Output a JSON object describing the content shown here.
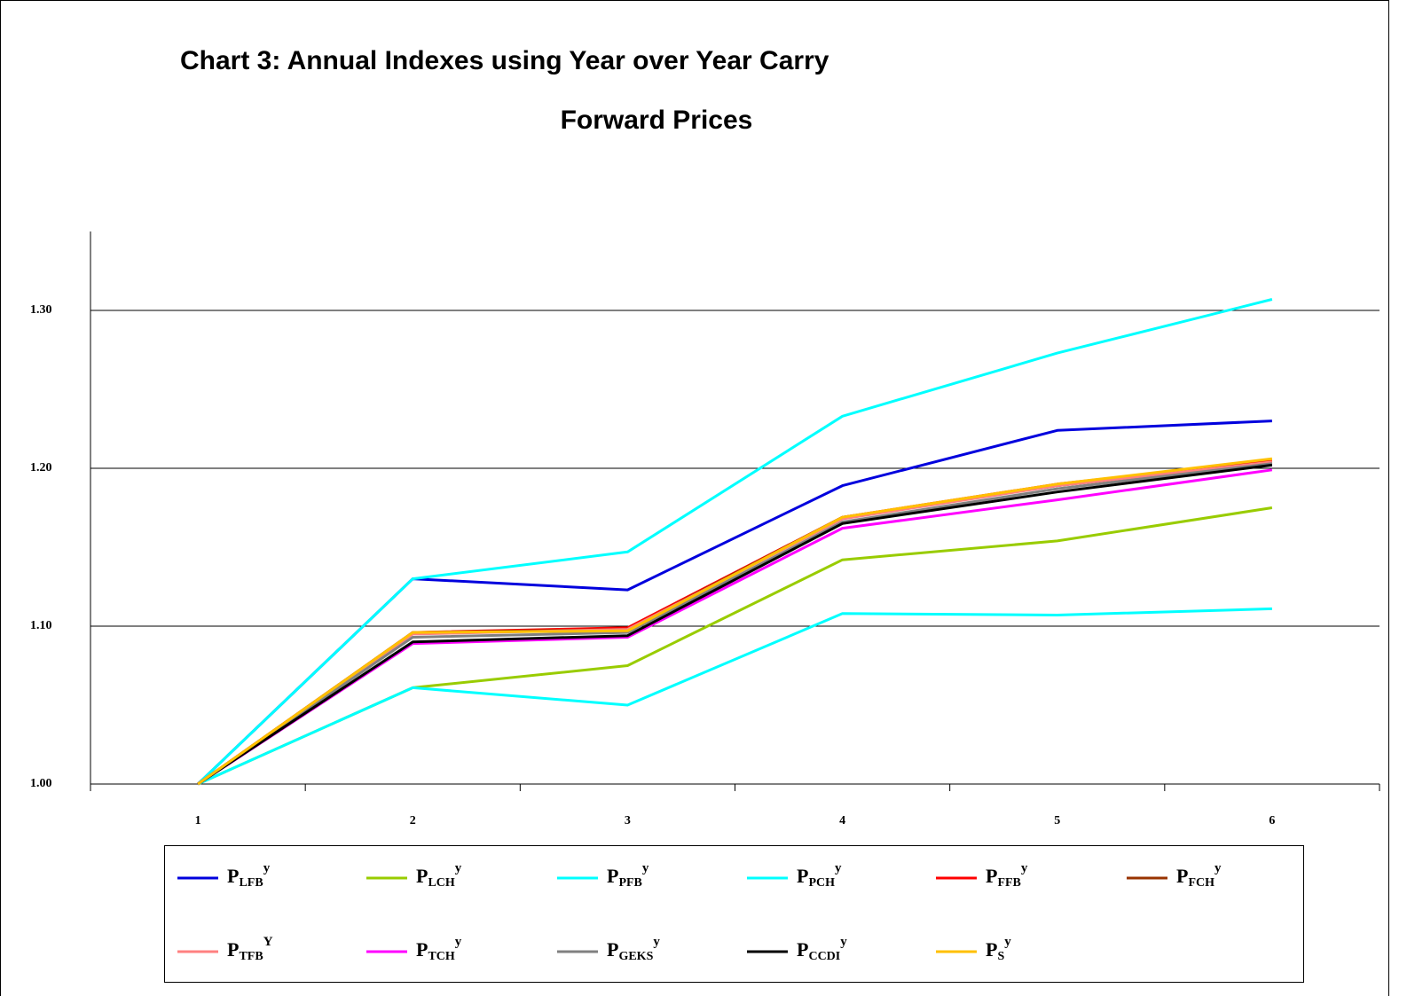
{
  "chart_data": {
    "type": "line",
    "title": [
      "Chart 3: Annual Indexes using Year over Year Carry",
      "Forward Prices"
    ],
    "categories": [
      "1",
      "2",
      "3",
      "4",
      "5",
      "6"
    ],
    "ylim": [
      1.0,
      1.35
    ],
    "yticks": [
      {
        "value": 1.0,
        "label": "1.00"
      },
      {
        "value": 1.1,
        "label": "1.10"
      },
      {
        "value": 1.2,
        "label": "1.20"
      },
      {
        "value": 1.3,
        "label": "1.30"
      }
    ],
    "grid": true,
    "legend": "bottom",
    "series": [
      {
        "name": "P",
        "sub": "LFB",
        "sup": "y",
        "color": "#0000dd",
        "values": [
          1.0,
          1.13,
          1.123,
          1.189,
          1.224,
          1.23
        ]
      },
      {
        "name": "P",
        "sub": "LCH",
        "sup": "y",
        "color": "#99cc00",
        "values": [
          1.0,
          1.061,
          1.075,
          1.142,
          1.154,
          1.175
        ]
      },
      {
        "name": "P",
        "sub": "PFB",
        "sup": "y",
        "color": "#00ffff",
        "values": [
          1.0,
          1.13,
          1.147,
          1.233,
          1.273,
          1.307
        ]
      },
      {
        "name": "P",
        "sub": "PCH",
        "sup": "y",
        "color": "#00ffff",
        "values": [
          1.0,
          1.061,
          1.05,
          1.108,
          1.107,
          1.111
        ]
      },
      {
        "name": "P",
        "sub": "FFB",
        "sup": "y",
        "color": "#ff0000",
        "values": [
          1.0,
          1.096,
          1.099,
          1.169,
          1.19,
          1.205
        ]
      },
      {
        "name": "P",
        "sub": "FCH",
        "sup": "y",
        "color": "#993300",
        "values": [
          1.0,
          1.096,
          1.098,
          1.169,
          1.189,
          1.204
        ]
      },
      {
        "name": "P",
        "sub": "TFB",
        "sup": "Y",
        "color": "#ff8080",
        "values": [
          1.0,
          1.095,
          1.098,
          1.168,
          1.189,
          1.204
        ]
      },
      {
        "name": "P",
        "sub": "TCH",
        "sup": "y",
        "color": "#ff00ff",
        "values": [
          1.0,
          1.089,
          1.093,
          1.162,
          1.18,
          1.199
        ]
      },
      {
        "name": "P",
        "sub": "GEKS",
        "sup": "y",
        "color": "#808080",
        "values": [
          1.0,
          1.093,
          1.096,
          1.166,
          1.187,
          1.203
        ]
      },
      {
        "name": "P",
        "sub": "CCDI",
        "sup": "y",
        "color": "#000000",
        "values": [
          1.0,
          1.09,
          1.094,
          1.165,
          1.185,
          1.202
        ]
      },
      {
        "name": "P",
        "sub": "S",
        "sup": "y",
        "color": "#ffc000",
        "values": [
          1.0,
          1.096,
          1.097,
          1.169,
          1.19,
          1.206
        ]
      }
    ]
  }
}
